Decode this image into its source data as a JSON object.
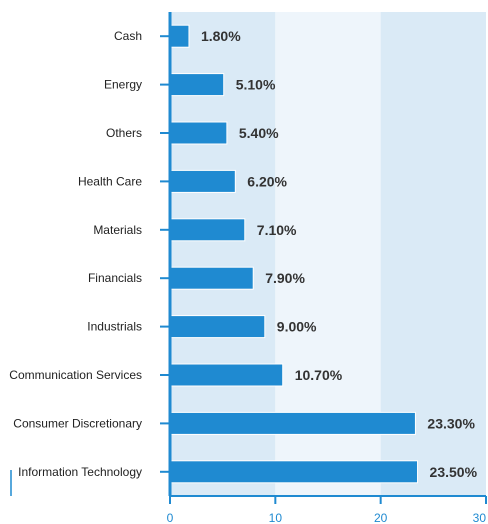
{
  "chart_data": {
    "type": "bar",
    "orientation": "horizontal",
    "categories": [
      "Cash",
      "Energy",
      "Others",
      "Health Care",
      "Materials",
      "Financials",
      "Industrials",
      "Communication Services",
      "Consumer Discretionary",
      "Information Technology"
    ],
    "values": [
      1.8,
      5.1,
      5.4,
      6.2,
      7.1,
      7.9,
      9.0,
      10.7,
      23.3,
      23.5
    ],
    "value_labels": [
      "1.80%",
      "5.10%",
      "5.40%",
      "6.20%",
      "7.10%",
      "7.90%",
      "9.00%",
      "10.70%",
      "23.30%",
      "23.50%"
    ],
    "x_ticks": [
      0,
      10,
      20,
      30
    ],
    "xlim": [
      0,
      30
    ],
    "title": "",
    "xlabel": "",
    "ylabel": "",
    "grid": false,
    "colors": {
      "bar": "#1f8ad1",
      "band_dark": "#daeaf6",
      "band_light": "#eef5fb",
      "axis": "#1f8ad1"
    }
  }
}
